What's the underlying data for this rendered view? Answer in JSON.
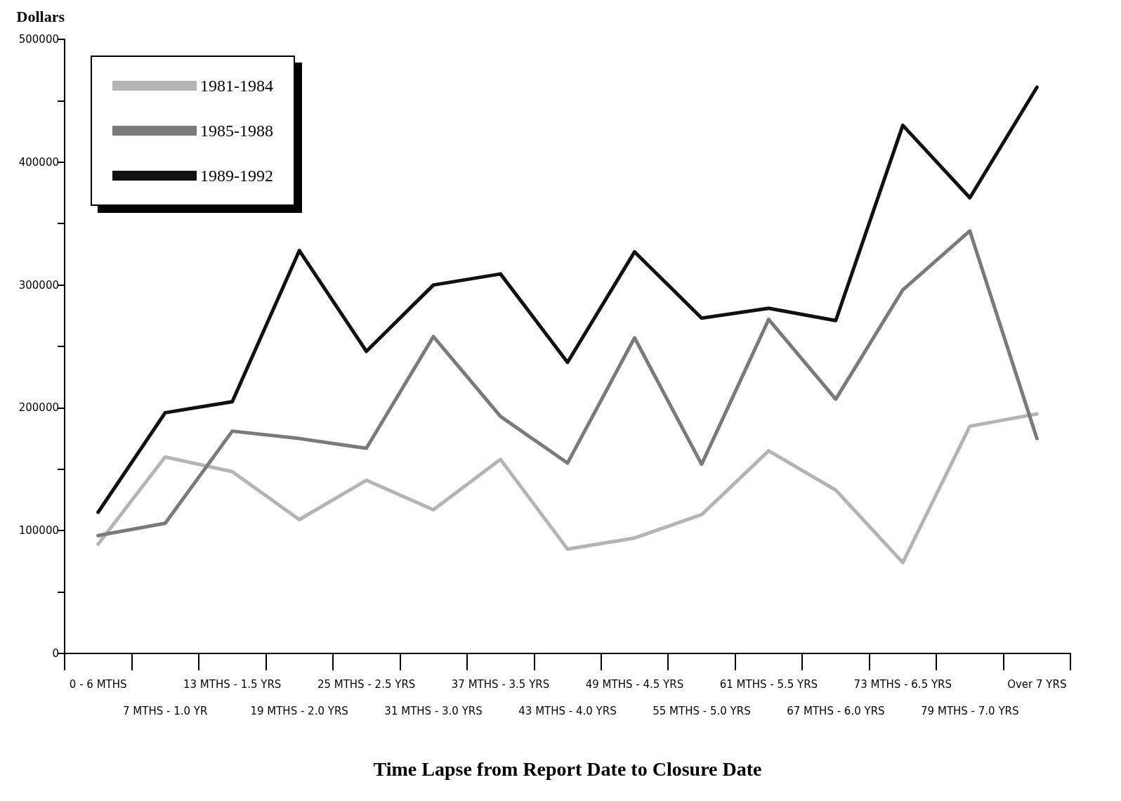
{
  "chart_data": {
    "type": "line",
    "ylabel": "Dollars",
    "xlabel": "Time Lapse from Report Date to Closure Date",
    "categories": [
      "0 - 6 MTHS",
      "7 MTHS - 1.0 YR",
      "13 MTHS - 1.5 YRS",
      "19 MTHS - 2.0 YRS",
      "25 MTHS - 2.5 YRS",
      "31 MTHS - 3.0 YRS",
      "37 MTHS - 3.5 YRS",
      "43 MTHS - 4.0 YRS",
      "49 MTHS - 4.5 YRS",
      "55 MTHS - 5.0 YRS",
      "61 MTHS - 5.5 YRS",
      "67 MTHS - 6.0 YRS",
      "73 MTHS - 6.5 YRS",
      "79 MTHS - 7.0 YRS",
      "Over 7 YRS"
    ],
    "series": [
      {
        "name": "1981-1984",
        "color": "#b4b4b4",
        "values": [
          89000,
          160000,
          148000,
          109000,
          141000,
          117000,
          158000,
          85000,
          94000,
          113000,
          165000,
          133000,
          74000,
          185000,
          195000
        ]
      },
      {
        "name": "1985-1988",
        "color": "#7a7a7a",
        "values": [
          96000,
          106000,
          181000,
          175000,
          167000,
          258000,
          193000,
          155000,
          257000,
          154000,
          272000,
          207000,
          296000,
          344000,
          175000
        ]
      },
      {
        "name": "1989-1992",
        "color": "#111111",
        "values": [
          115000,
          196000,
          205000,
          328000,
          246000,
          300000,
          309000,
          237000,
          327000,
          273000,
          281000,
          271000,
          430000,
          371000,
          461000
        ]
      }
    ],
    "ylim": [
      0,
      500000
    ],
    "yticks": [
      0,
      {
        "value": 50000,
        "label": null
      },
      100000,
      {
        "value": 150000,
        "label": null
      },
      200000,
      {
        "value": 250000,
        "label": null
      },
      300000,
      {
        "value": 350000,
        "label": null
      },
      400000,
      {
        "value": 450000,
        "label": null
      },
      500000
    ],
    "legend": "top left",
    "grid": false,
    "marker": "none",
    "line_style": "solid"
  }
}
